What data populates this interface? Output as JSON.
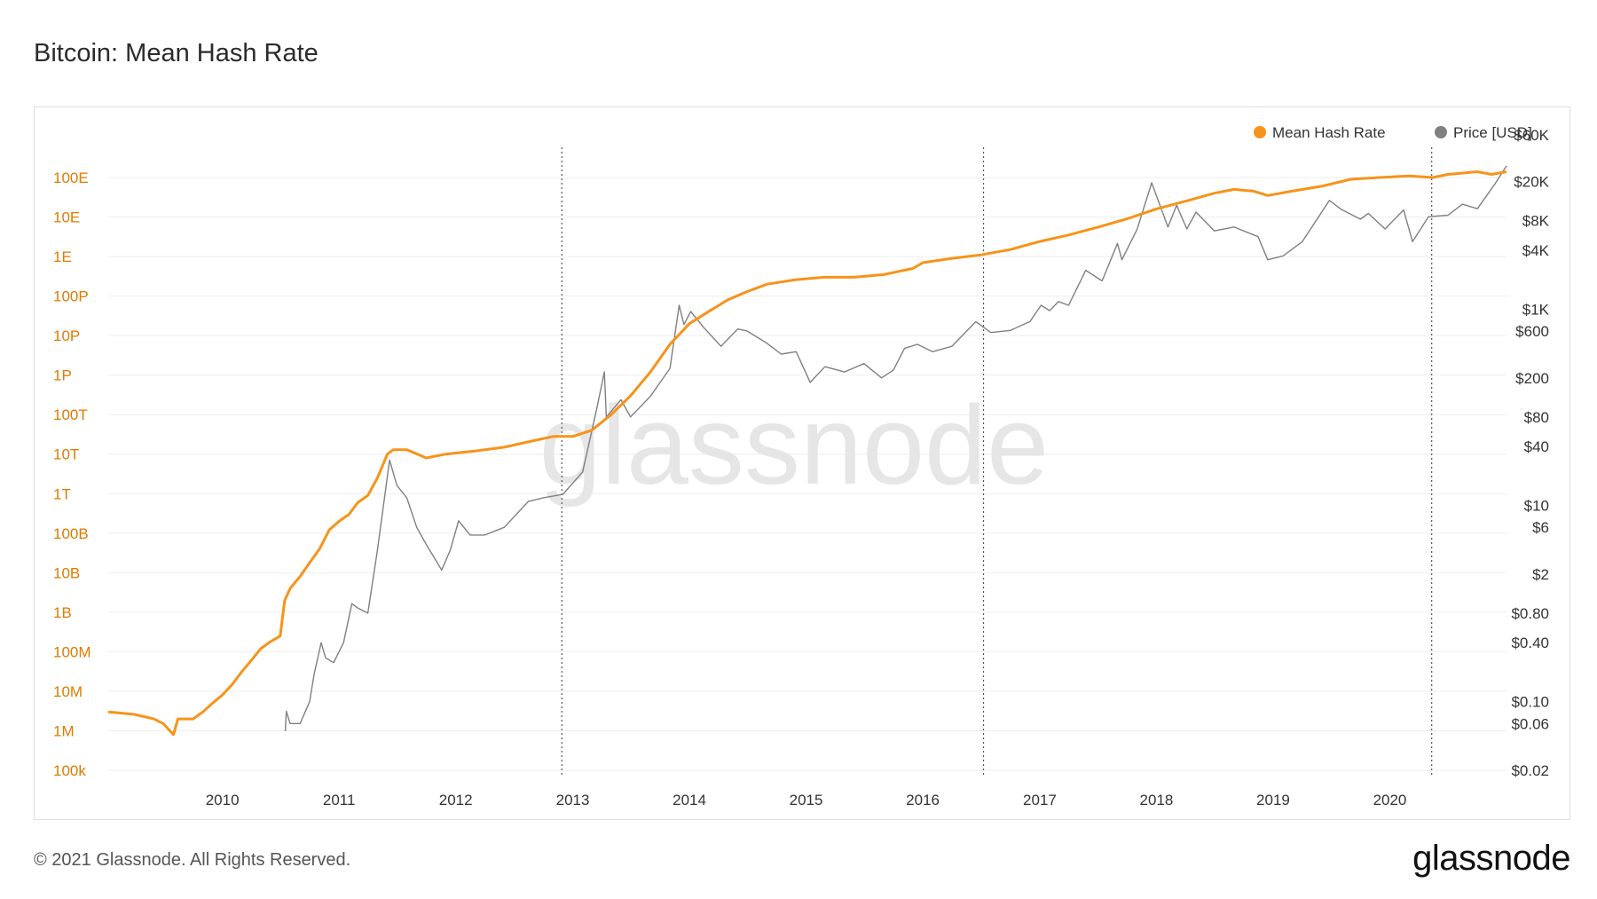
{
  "title": "Bitcoin: Mean Hash Rate",
  "footer": {
    "copyright": "© 2021 Glassnode. All Rights Reserved.",
    "logo": "glassnode"
  },
  "watermark": "glassnode",
  "colors": {
    "hash": "#f7931a",
    "price": "#808080",
    "axis_left": "#e07b00",
    "grid": "#eeeeee"
  },
  "chart_data": {
    "type": "line",
    "title": "Bitcoin: Mean Hash Rate",
    "x_ticks": [
      "2010",
      "2011",
      "2012",
      "2013",
      "2014",
      "2015",
      "2016",
      "2017",
      "2018",
      "2019",
      "2020"
    ],
    "y_left_ticks": [
      "100k",
      "1M",
      "10M",
      "100M",
      "1B",
      "10B",
      "100B",
      "1T",
      "10T",
      "100T",
      "1P",
      "10P",
      "100P",
      "1E",
      "10E",
      "100E"
    ],
    "y_left_scale": "log",
    "y_right_ticks": [
      "$0.02",
      "$0.06",
      "$0.10",
      "$0.40",
      "$0.80",
      "$2",
      "$6",
      "$10",
      "$40",
      "$80",
      "$200",
      "$600",
      "$1K",
      "$4K",
      "$8K",
      "$20K",
      "$60K"
    ],
    "y_right_scale": "log",
    "halvings": [
      "2012-11-28",
      "2016-07-09",
      "2020-05-11"
    ],
    "legend": [
      {
        "name": "Mean Hash Rate",
        "color": "#f7931a"
      },
      {
        "name": "Price [USD]",
        "color": "#808080"
      }
    ],
    "legend_position": "top-right",
    "grid": true,
    "series": [
      {
        "name": "Mean Hash Rate",
        "axis": "left",
        "points": [
          [
            "2009-01-09",
            3000000.0
          ],
          [
            "2009-04-01",
            2600000.0
          ],
          [
            "2009-06-01",
            2000000.0
          ],
          [
            "2009-07-01",
            1500000.0
          ],
          [
            "2009-08-01",
            800000.0
          ],
          [
            "2009-08-15",
            2000000.0
          ],
          [
            "2009-10-01",
            2000000.0
          ],
          [
            "2009-11-01",
            3000000.0
          ],
          [
            "2009-12-01",
            5000000.0
          ],
          [
            "2010-01-01",
            8000000.0
          ],
          [
            "2010-02-01",
            15000000.0
          ],
          [
            "2010-03-01",
            30000000.0
          ],
          [
            "2010-04-01",
            60000000.0
          ],
          [
            "2010-05-01",
            120000000.0
          ],
          [
            "2010-06-01",
            180000000.0
          ],
          [
            "2010-07-01",
            250000000.0
          ],
          [
            "2010-07-15",
            2000000000.0
          ],
          [
            "2010-08-01",
            4000000000.0
          ],
          [
            "2010-09-01",
            8000000000.0
          ],
          [
            "2010-10-01",
            18000000000.0
          ],
          [
            "2010-11-01",
            40000000000.0
          ],
          [
            "2010-12-01",
            120000000000.0
          ],
          [
            "2011-01-01",
            200000000000.0
          ],
          [
            "2011-02-01",
            300000000000.0
          ],
          [
            "2011-03-01",
            600000000000.0
          ],
          [
            "2011-04-01",
            900000000000.0
          ],
          [
            "2011-05-01",
            2500000000000.0
          ],
          [
            "2011-06-01",
            10000000000000.0
          ],
          [
            "2011-06-20",
            13000000000000.0
          ],
          [
            "2011-08-01",
            13000000000000.0
          ],
          [
            "2011-10-01",
            8000000000000.0
          ],
          [
            "2011-12-01",
            10000000000000.0
          ],
          [
            "2012-03-01",
            12000000000000.0
          ],
          [
            "2012-06-01",
            15000000000000.0
          ],
          [
            "2012-09-01",
            22000000000000.0
          ],
          [
            "2012-11-01",
            28000000000000.0
          ],
          [
            "2013-01-01",
            28000000000000.0
          ],
          [
            "2013-03-01",
            40000000000000.0
          ],
          [
            "2013-05-01",
            100000000000000.0
          ],
          [
            "2013-07-01",
            300000000000000.0
          ],
          [
            "2013-09-01",
            1200000000000000.0
          ],
          [
            "2013-11-01",
            6000000000000000.0
          ],
          [
            "2014-01-01",
            2e+16
          ],
          [
            "2014-03-01",
            4e+16
          ],
          [
            "2014-05-01",
            8e+16
          ],
          [
            "2014-07-01",
            1.3e+17
          ],
          [
            "2014-09-01",
            2e+17
          ],
          [
            "2014-12-01",
            2.6e+17
          ],
          [
            "2015-03-01",
            3e+17
          ],
          [
            "2015-06-01",
            3e+17
          ],
          [
            "2015-09-01",
            3.5e+17
          ],
          [
            "2015-12-01",
            5e+17
          ],
          [
            "2016-01-01",
            7e+17
          ],
          [
            "2016-04-01",
            9e+17
          ],
          [
            "2016-07-01",
            1.1e+18
          ],
          [
            "2016-10-01",
            1.5e+18
          ],
          [
            "2017-01-01",
            2.4e+18
          ],
          [
            "2017-04-01",
            3.5e+18
          ],
          [
            "2017-07-01",
            5.5e+18
          ],
          [
            "2017-10-01",
            9e+18
          ],
          [
            "2018-01-01",
            1.6e+19
          ],
          [
            "2018-04-01",
            2.5e+19
          ],
          [
            "2018-07-01",
            4e+19
          ],
          [
            "2018-09-01",
            5e+19
          ],
          [
            "2018-11-01",
            4.5e+19
          ],
          [
            "2018-12-15",
            3.5e+19
          ],
          [
            "2019-03-01",
            4.5e+19
          ],
          [
            "2019-06-01",
            6e+19
          ],
          [
            "2019-09-01",
            9e+19
          ],
          [
            "2019-12-01",
            1e+20
          ],
          [
            "2020-03-01",
            1.1e+20
          ],
          [
            "2020-05-15",
            1e+20
          ],
          [
            "2020-07-01",
            1.2e+20
          ],
          [
            "2020-10-01",
            1.4e+20
          ],
          [
            "2020-11-15",
            1.2e+20
          ],
          [
            "2020-12-31",
            1.4e+20
          ]
        ]
      },
      {
        "name": "Price [USD]",
        "axis": "right",
        "points": [
          [
            "2010-07-17",
            0.05
          ],
          [
            "2010-07-20",
            0.08
          ],
          [
            "2010-08-01",
            0.06
          ],
          [
            "2010-09-01",
            0.06
          ],
          [
            "2010-10-01",
            0.1
          ],
          [
            "2010-10-15",
            0.19
          ],
          [
            "2010-11-06",
            0.4
          ],
          [
            "2010-11-20",
            0.28
          ],
          [
            "2010-12-15",
            0.25
          ],
          [
            "2011-01-15",
            0.4
          ],
          [
            "2011-02-10",
            1.0
          ],
          [
            "2011-03-01",
            0.9
          ],
          [
            "2011-04-01",
            0.8
          ],
          [
            "2011-05-01",
            3.5
          ],
          [
            "2011-06-08",
            29
          ],
          [
            "2011-07-01",
            16
          ],
          [
            "2011-08-01",
            12
          ],
          [
            "2011-09-01",
            6
          ],
          [
            "2011-10-01",
            4
          ],
          [
            "2011-11-18",
            2.2
          ],
          [
            "2011-12-15",
            3.5
          ],
          [
            "2012-01-10",
            7
          ],
          [
            "2012-02-15",
            5
          ],
          [
            "2012-04-01",
            5
          ],
          [
            "2012-06-01",
            6
          ],
          [
            "2012-08-15",
            11
          ],
          [
            "2012-10-01",
            12
          ],
          [
            "2012-12-01",
            13
          ],
          [
            "2013-02-01",
            22
          ],
          [
            "2013-03-15",
            90
          ],
          [
            "2013-04-10",
            230
          ],
          [
            "2013-04-16",
            80
          ],
          [
            "2013-06-01",
            120
          ],
          [
            "2013-07-01",
            80
          ],
          [
            "2013-09-01",
            130
          ],
          [
            "2013-11-01",
            250
          ],
          [
            "2013-11-30",
            1100
          ],
          [
            "2013-12-15",
            700
          ],
          [
            "2014-01-05",
            950
          ],
          [
            "2014-02-15",
            650
          ],
          [
            "2014-04-10",
            420
          ],
          [
            "2014-06-01",
            630
          ],
          [
            "2014-07-01",
            600
          ],
          [
            "2014-09-01",
            450
          ],
          [
            "2014-10-15",
            350
          ],
          [
            "2014-12-01",
            370
          ],
          [
            "2015-01-14",
            180
          ],
          [
            "2015-03-01",
            260
          ],
          [
            "2015-05-01",
            230
          ],
          [
            "2015-07-01",
            280
          ],
          [
            "2015-08-25",
            200
          ],
          [
            "2015-10-01",
            240
          ],
          [
            "2015-11-05",
            400
          ],
          [
            "2015-12-15",
            440
          ],
          [
            "2016-02-01",
            370
          ],
          [
            "2016-04-01",
            420
          ],
          [
            "2016-06-15",
            750
          ],
          [
            "2016-08-01",
            580
          ],
          [
            "2016-10-01",
            610
          ],
          [
            "2016-12-01",
            750
          ],
          [
            "2017-01-05",
            1100
          ],
          [
            "2017-02-01",
            970
          ],
          [
            "2017-03-01",
            1200
          ],
          [
            "2017-04-01",
            1100
          ],
          [
            "2017-05-25",
            2500
          ],
          [
            "2017-07-15",
            1950
          ],
          [
            "2017-09-01",
            4700
          ],
          [
            "2017-09-15",
            3200
          ],
          [
            "2017-11-01",
            6500
          ],
          [
            "2017-12-17",
            19500
          ],
          [
            "2018-02-06",
            6900
          ],
          [
            "2018-03-05",
            11500
          ],
          [
            "2018-04-06",
            6600
          ],
          [
            "2018-05-05",
            9800
          ],
          [
            "2018-07-01",
            6300
          ],
          [
            "2018-09-01",
            6900
          ],
          [
            "2018-11-15",
            5500
          ],
          [
            "2018-12-15",
            3200
          ],
          [
            "2019-02-01",
            3500
          ],
          [
            "2019-04-02",
            4900
          ],
          [
            "2019-06-26",
            12900
          ],
          [
            "2019-08-01",
            10500
          ],
          [
            "2019-10-01",
            8300
          ],
          [
            "2019-10-26",
            9500
          ],
          [
            "2019-12-17",
            6600
          ],
          [
            "2020-02-13",
            10300
          ],
          [
            "2020-03-12",
            4900
          ],
          [
            "2020-05-01",
            8800
          ],
          [
            "2020-07-01",
            9100
          ],
          [
            "2020-08-15",
            11800
          ],
          [
            "2020-10-01",
            10600
          ],
          [
            "2020-11-25",
            19000
          ],
          [
            "2020-12-31",
            29000
          ]
        ]
      }
    ]
  }
}
